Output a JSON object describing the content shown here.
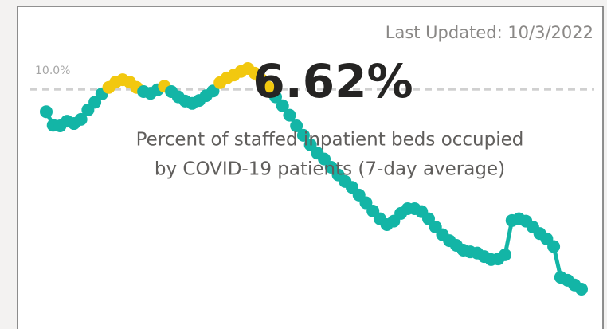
{
  "chart_data": {
    "type": "line",
    "title": "6.62%",
    "subtitle_lines": [
      "Percent of staffed inpatient beds occupied",
      "by COVID-19 patients (7-day average)"
    ],
    "annotation": "Last Updated: 10/3/2022",
    "reference_line": {
      "value": 10,
      "label": "10.0%"
    },
    "ylim": [
      6.0,
      10.7
    ],
    "color": "#13b5a6",
    "above_reference_color": "#f2c80f",
    "values": [
      9.62,
      9.39,
      9.38,
      9.46,
      9.42,
      9.49,
      9.65,
      9.78,
      9.92,
      10.03,
      10.12,
      10.16,
      10.12,
      10.03,
      9.96,
      9.93,
      9.99,
      10.05,
      9.96,
      9.87,
      9.8,
      9.76,
      9.81,
      9.89,
      9.97,
      10.11,
      10.19,
      10.24,
      10.3,
      10.35,
      10.27,
      10.16,
      10.03,
      9.87,
      9.72,
      9.56,
      9.38,
      9.22,
      9.06,
      8.92,
      8.82,
      8.68,
      8.55,
      8.44,
      8.34,
      8.21,
      8.08,
      7.94,
      7.81,
      7.71,
      7.77,
      7.9,
      7.98,
      7.98,
      7.93,
      7.81,
      7.67,
      7.54,
      7.44,
      7.36,
      7.28,
      7.25,
      7.23,
      7.17,
      7.12,
      7.13,
      7.2,
      7.78,
      7.81,
      7.77,
      7.67,
      7.56,
      7.47,
      7.34,
      6.82,
      6.77,
      6.69,
      6.62
    ]
  }
}
